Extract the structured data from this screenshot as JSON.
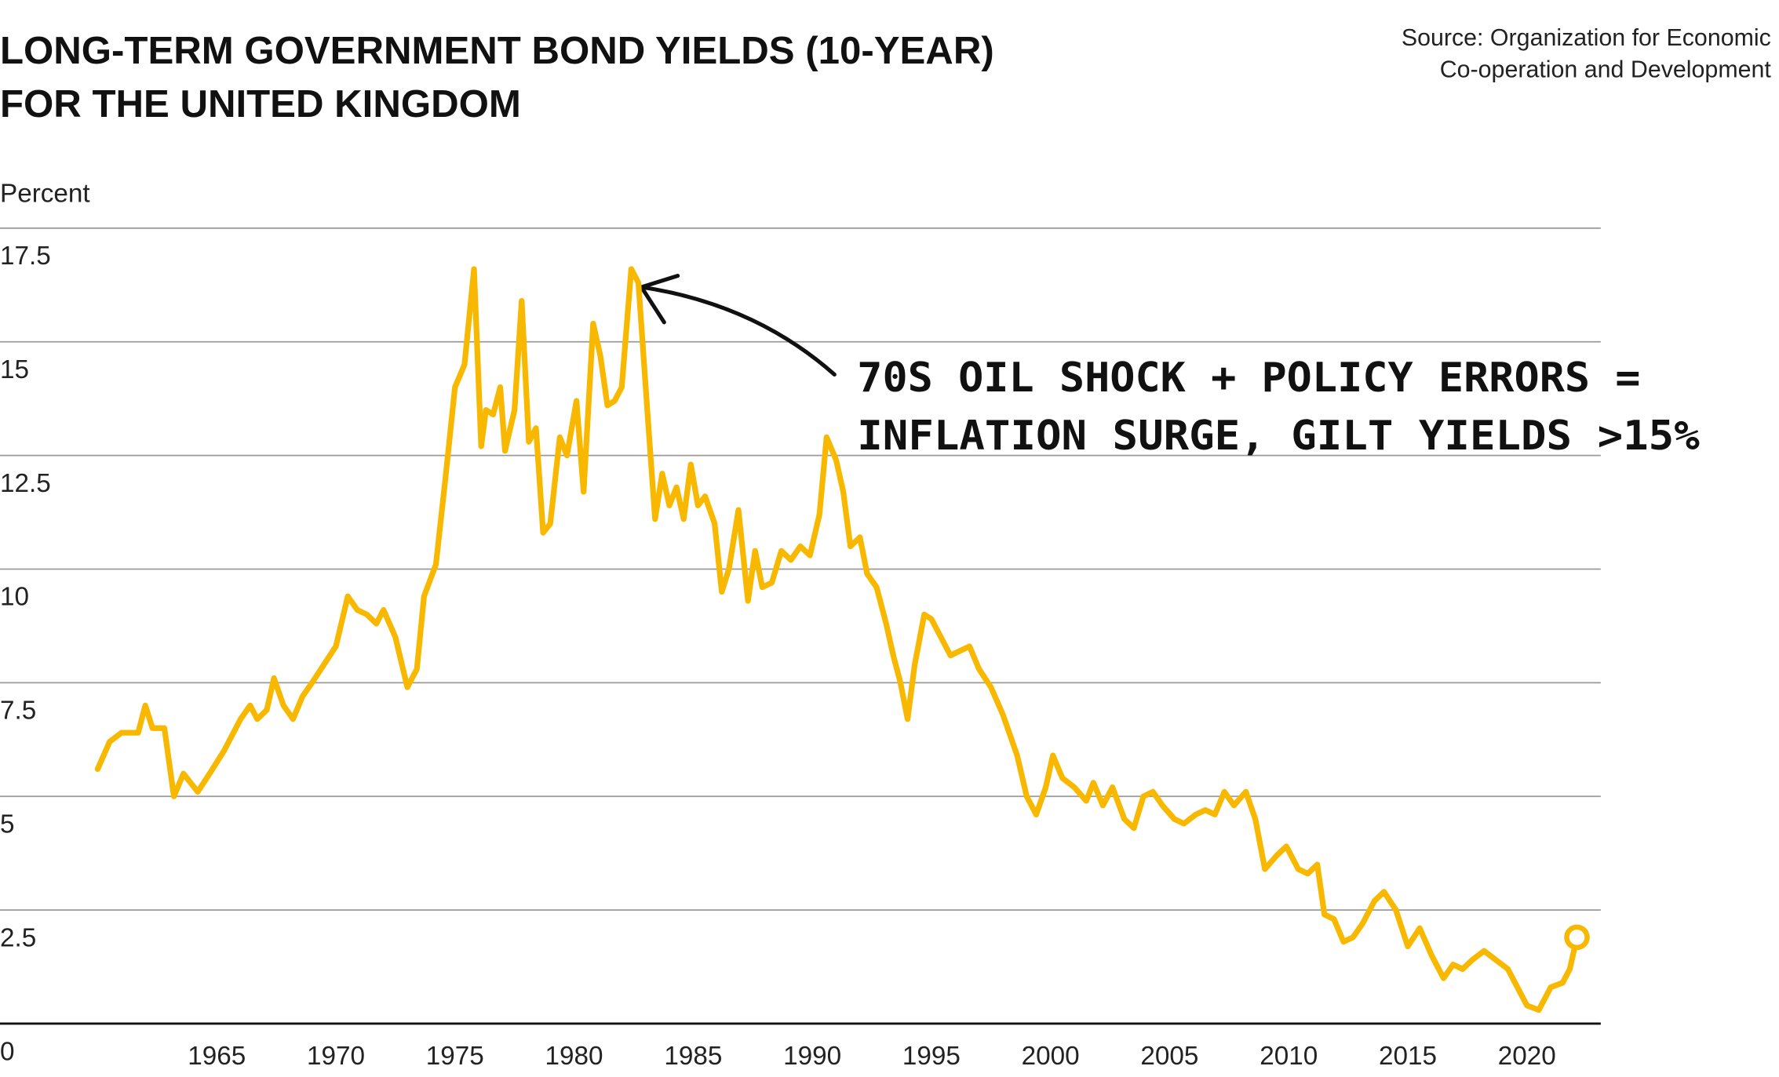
{
  "chart_data": {
    "type": "line",
    "title": [
      "LONG-TERM GOVERNMENT BOND YIELDS (10-YEAR)",
      "FOR THE UNITED KINGDOM"
    ],
    "source": [
      "Source: Organization for Economic",
      "Co-operation and Development"
    ],
    "y_label": "Percent",
    "annotation": [
      "70S OIL SHOCK + POLICY ERRORS =",
      "INFLATION SURGE, GILT YIELDS >15%"
    ],
    "color": "#f9b800",
    "grid": true,
    "xlim": [
      1955.9,
      2023.1
    ],
    "ylim": [
      0,
      17.5
    ],
    "xticks": [
      1965,
      1970,
      1975,
      1980,
      1985,
      1990,
      1995,
      2000,
      2005,
      2010,
      2015,
      2020
    ],
    "yticks": [
      0,
      2.5,
      5,
      7.5,
      10,
      12.5,
      15,
      17.5
    ],
    "x": [
      1960,
      1960.5,
      1961,
      1961.7,
      1962,
      1962.3,
      1962.8,
      1963.2,
      1963.6,
      1964.2,
      1964.7,
      1965.3,
      1966,
      1966.4,
      1966.7,
      1967.1,
      1967.4,
      1967.8,
      1968.2,
      1968.6,
      1969,
      1969.5,
      1970,
      1970.5,
      1970.9,
      1971.3,
      1971.7,
      1972,
      1972.5,
      1973,
      1973.4,
      1973.7,
      1974.2,
      1974.6,
      1975,
      1975.4,
      1975.8,
      1976.1,
      1976.3,
      1976.6,
      1976.9,
      1977.1,
      1977.5,
      1977.8,
      1978.1,
      1978.4,
      1978.7,
      1979,
      1979.4,
      1979.7,
      1980.1,
      1980.4,
      1980.8,
      1981.1,
      1981.4,
      1981.7,
      1982,
      1982.4,
      1982.7,
      1983.1,
      1983.4,
      1983.7,
      1984,
      1984.3,
      1984.6,
      1984.9,
      1985.2,
      1985.5,
      1985.9,
      1986.2,
      1986.5,
      1986.9,
      1987.3,
      1987.6,
      1987.9,
      1988.3,
      1988.7,
      1989.1,
      1989.5,
      1989.9,
      1990.3,
      1990.6,
      1991,
      1991.3,
      1991.6,
      1992,
      1992.3,
      1992.7,
      1993.1,
      1993.4,
      1993.7,
      1994,
      1994.3,
      1994.7,
      1995,
      1995.4,
      1995.8,
      1996.2,
      1996.6,
      1997,
      1997.5,
      1998,
      1998.6,
      1999,
      1999.4,
      1999.8,
      2000.1,
      2000.5,
      2001,
      2001.5,
      2001.8,
      2002.2,
      2002.6,
      2003.1,
      2003.5,
      2003.9,
      2004.3,
      2004.7,
      2005.2,
      2005.6,
      2006.1,
      2006.5,
      2006.9,
      2007.3,
      2007.7,
      2008.2,
      2008.6,
      2009,
      2009.5,
      2009.9,
      2010.4,
      2010.8,
      2011.2,
      2011.5,
      2011.9,
      2012.3,
      2012.7,
      2013.1,
      2013.6,
      2014,
      2014.5,
      2015,
      2015.5,
      2016,
      2016.5,
      2016.9,
      2017.3,
      2017.7,
      2018.2,
      2018.7,
      2019.2,
      2019.6,
      2020,
      2020.5,
      2021,
      2021.5,
      2021.8,
      2022.1
    ],
    "values": [
      5.6,
      6.2,
      6.4,
      6.4,
      7.0,
      6.5,
      6.5,
      5.0,
      5.5,
      5.1,
      5.5,
      6.0,
      6.7,
      7.0,
      6.7,
      6.9,
      7.6,
      7.0,
      6.7,
      7.2,
      7.5,
      7.9,
      8.3,
      9.4,
      9.1,
      9.0,
      8.8,
      9.1,
      8.5,
      7.4,
      7.8,
      9.4,
      10.1,
      12.0,
      14.0,
      14.5,
      16.6,
      12.7,
      13.5,
      13.4,
      14.0,
      12.6,
      13.5,
      15.9,
      12.8,
      13.1,
      10.8,
      11.0,
      12.9,
      12.5,
      13.7,
      11.7,
      15.4,
      14.7,
      13.6,
      13.7,
      14.0,
      16.6,
      16.3,
      13.3,
      11.1,
      12.1,
      11.4,
      11.8,
      11.1,
      12.3,
      11.4,
      11.6,
      11.0,
      9.5,
      10.0,
      11.3,
      9.3,
      10.4,
      9.6,
      9.7,
      10.4,
      10.2,
      10.5,
      10.3,
      11.2,
      12.9,
      12.4,
      11.7,
      10.5,
      10.7,
      9.9,
      9.6,
      8.8,
      8.1,
      7.5,
      6.7,
      7.9,
      9.0,
      8.9,
      8.5,
      8.1,
      8.2,
      8.3,
      7.8,
      7.4,
      6.8,
      5.9,
      5.0,
      4.6,
      5.2,
      5.9,
      5.4,
      5.2,
      4.9,
      5.3,
      4.8,
      5.2,
      4.5,
      4.3,
      5.0,
      5.1,
      4.8,
      4.5,
      4.4,
      4.6,
      4.7,
      4.6,
      5.1,
      4.8,
      5.1,
      4.5,
      3.4,
      3.7,
      3.9,
      3.4,
      3.3,
      3.5,
      2.4,
      2.3,
      1.8,
      1.9,
      2.2,
      2.7,
      2.9,
      2.5,
      1.7,
      2.1,
      1.5,
      1.0,
      1.3,
      1.2,
      1.4,
      1.6,
      1.4,
      1.2,
      0.8,
      0.4,
      0.3,
      0.8,
      0.9,
      1.2,
      1.9
    ]
  }
}
